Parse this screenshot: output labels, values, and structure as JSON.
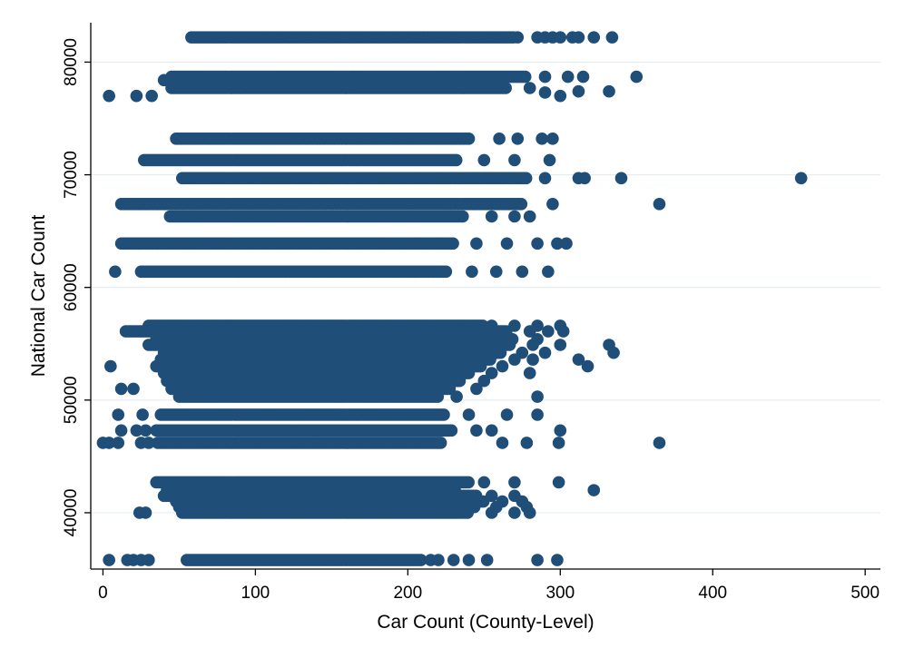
{
  "chart_data": {
    "type": "scatter",
    "title": "",
    "xlabel": "Car Count (County-Level)",
    "ylabel": "National Car Count",
    "xlim": [
      -8,
      510
    ],
    "ylim": [
      35000,
      83500
    ],
    "xticks": [
      0,
      100,
      200,
      300,
      400,
      500
    ],
    "yticks": [
      40000,
      50000,
      60000,
      70000,
      80000
    ],
    "xtick_labels": [
      "0",
      "100",
      "200",
      "300",
      "400",
      "500"
    ],
    "ytick_labels": [
      "40000",
      "50000",
      "60000",
      "70000",
      "80000"
    ],
    "grid": "horizontal",
    "marker_color": "#1f4e79",
    "rows": [
      {
        "y": 82200,
        "range": [
          58,
          270
        ],
        "extras": [
          [
            272,
            0
          ],
          [
            285,
            0
          ],
          [
            290,
            0
          ],
          [
            295,
            0
          ],
          [
            300,
            0
          ],
          [
            308,
            0
          ],
          [
            312,
            0
          ],
          [
            322,
            0
          ],
          [
            334,
            0
          ]
        ]
      },
      {
        "y": 78700,
        "range": [
          45,
          278
        ],
        "extras": [
          [
            40,
            -300
          ],
          [
            290,
            0
          ],
          [
            305,
            0
          ],
          [
            315,
            0
          ],
          [
            350,
            0
          ]
        ]
      },
      {
        "y": 77700,
        "range": [
          45,
          265
        ],
        "extras": [
          [
            4,
            -700
          ],
          [
            22,
            -700
          ],
          [
            32,
            -700
          ],
          [
            280,
            0
          ],
          [
            290,
            -400
          ],
          [
            300,
            -700
          ],
          [
            312,
            -300
          ],
          [
            332,
            -300
          ]
        ]
      },
      {
        "y": 73200,
        "range": [
          48,
          240
        ],
        "extras": [
          [
            260,
            0
          ],
          [
            272,
            0
          ],
          [
            288,
            0
          ],
          [
            295,
            0
          ]
        ]
      },
      {
        "y": 71300,
        "range": [
          27,
          232
        ],
        "extras": [
          [
            250,
            0
          ],
          [
            270,
            0
          ],
          [
            293,
            0
          ]
        ]
      },
      {
        "y": 69700,
        "range": [
          52,
          278
        ],
        "extras": [
          [
            290,
            0
          ],
          [
            312,
            0
          ],
          [
            316,
            0
          ],
          [
            340,
            0
          ],
          [
            458,
            0
          ]
        ]
      },
      {
        "y": 67400,
        "range": [
          12,
          275
        ],
        "extras": [
          [
            295,
            0
          ],
          [
            365,
            0
          ]
        ]
      },
      {
        "y": 66300,
        "range": [
          44,
          237
        ],
        "extras": [
          [
            255,
            0
          ],
          [
            270,
            0
          ],
          [
            280,
            0
          ]
        ]
      },
      {
        "y": 63900,
        "range": [
          12,
          230
        ],
        "extras": [
          [
            245,
            0
          ],
          [
            265,
            0
          ],
          [
            285,
            0
          ],
          [
            298,
            0
          ],
          [
            304,
            0
          ]
        ]
      },
      {
        "y": 61400,
        "range": [
          25,
          225
        ],
        "extras": [
          [
            8,
            0
          ],
          [
            242,
            0
          ],
          [
            258,
            0
          ],
          [
            275,
            0
          ],
          [
            292,
            0
          ]
        ]
      },
      {
        "y": 56600,
        "range": [
          30,
          250
        ],
        "extras": [
          [
            255,
            0
          ],
          [
            270,
            0
          ],
          [
            285,
            0
          ],
          [
            300,
            0
          ]
        ]
      },
      {
        "y": 56100,
        "range": [
          15,
          265
        ],
        "extras": [
          [
            280,
            0
          ],
          [
            292,
            0
          ],
          [
            302,
            0
          ]
        ]
      },
      {
        "y": 55400,
        "range": [
          35,
          270
        ],
        "extras": [
          [
            285,
            0
          ]
        ]
      },
      {
        "y": 54900,
        "range": [
          30,
          268
        ],
        "extras": [
          [
            282,
            0
          ],
          [
            300,
            0
          ],
          [
            332,
            0
          ]
        ]
      },
      {
        "y": 54200,
        "range": [
          40,
          262
        ],
        "extras": [
          [
            275,
            0
          ],
          [
            290,
            0
          ],
          [
            335,
            0
          ]
        ]
      },
      {
        "y": 53600,
        "range": [
          38,
          255
        ],
        "extras": [
          [
            270,
            0
          ],
          [
            282,
            0
          ],
          [
            312,
            0
          ]
        ]
      },
      {
        "y": 53000,
        "range": [
          35,
          248
        ],
        "extras": [
          [
            5,
            0
          ],
          [
            262,
            0
          ],
          [
            318,
            0
          ]
        ]
      },
      {
        "y": 52400,
        "range": [
          40,
          240
        ],
        "extras": [
          [
            255,
            0
          ],
          [
            280,
            0
          ]
        ]
      },
      {
        "y": 51700,
        "range": [
          42,
          235
        ],
        "extras": [
          [
            250,
            0
          ]
        ]
      },
      {
        "y": 51000,
        "range": [
          45,
          228
        ],
        "extras": [
          [
            12,
            0
          ],
          [
            20,
            0
          ],
          [
            245,
            0
          ]
        ]
      },
      {
        "y": 50300,
        "range": [
          50,
          220
        ],
        "extras": [
          [
            232,
            0
          ],
          [
            285,
            0
          ]
        ]
      },
      {
        "y": 48700,
        "range": [
          38,
          225
        ],
        "extras": [
          [
            10,
            0
          ],
          [
            26,
            0
          ],
          [
            240,
            0
          ],
          [
            265,
            0
          ],
          [
            285,
            0
          ]
        ]
      },
      {
        "y": 47300,
        "range": [
          35,
          230
        ],
        "extras": [
          [
            12,
            0
          ],
          [
            22,
            0
          ],
          [
            28,
            0
          ],
          [
            245,
            0
          ],
          [
            255,
            0
          ],
          [
            300,
            0
          ]
        ]
      },
      {
        "y": 46200,
        "range": [
          36,
          222
        ],
        "extras": [
          [
            0,
            0
          ],
          [
            4,
            0
          ],
          [
            10,
            0
          ],
          [
            25,
            0
          ],
          [
            30,
            0
          ],
          [
            262,
            0
          ],
          [
            278,
            0
          ],
          [
            299,
            0
          ],
          [
            365,
            0
          ]
        ]
      },
      {
        "y": 42700,
        "range": [
          35,
          240
        ],
        "extras": [
          [
            250,
            0
          ],
          [
            270,
            0
          ],
          [
            299,
            0
          ]
        ]
      },
      {
        "y": 42000,
        "range": [
          42,
          232
        ],
        "extras": [
          [
            322,
            0
          ]
        ]
      },
      {
        "y": 41500,
        "range": [
          40,
          245
        ],
        "extras": [
          [
            255,
            0
          ],
          [
            270,
            0
          ]
        ]
      },
      {
        "y": 41000,
        "range": [
          48,
          250
        ],
        "extras": [
          [
            262,
            0
          ],
          [
            275,
            0
          ]
        ]
      },
      {
        "y": 40500,
        "range": [
          50,
          245
        ],
        "extras": [
          [
            258,
            0
          ],
          [
            278,
            0
          ]
        ]
      },
      {
        "y": 40000,
        "range": [
          52,
          240
        ],
        "extras": [
          [
            24,
            0
          ],
          [
            28,
            0
          ],
          [
            255,
            0
          ],
          [
            270,
            0
          ],
          [
            280,
            0
          ]
        ]
      },
      {
        "y": 35800,
        "range": [
          55,
          210
        ],
        "extras": [
          [
            4,
            0
          ],
          [
            16,
            0
          ],
          [
            20,
            0
          ],
          [
            25,
            0
          ],
          [
            30,
            0
          ],
          [
            215,
            0
          ],
          [
            220,
            0
          ],
          [
            230,
            0
          ],
          [
            240,
            0
          ],
          [
            252,
            0
          ],
          [
            285,
            0
          ],
          [
            298,
            0
          ]
        ]
      }
    ]
  }
}
